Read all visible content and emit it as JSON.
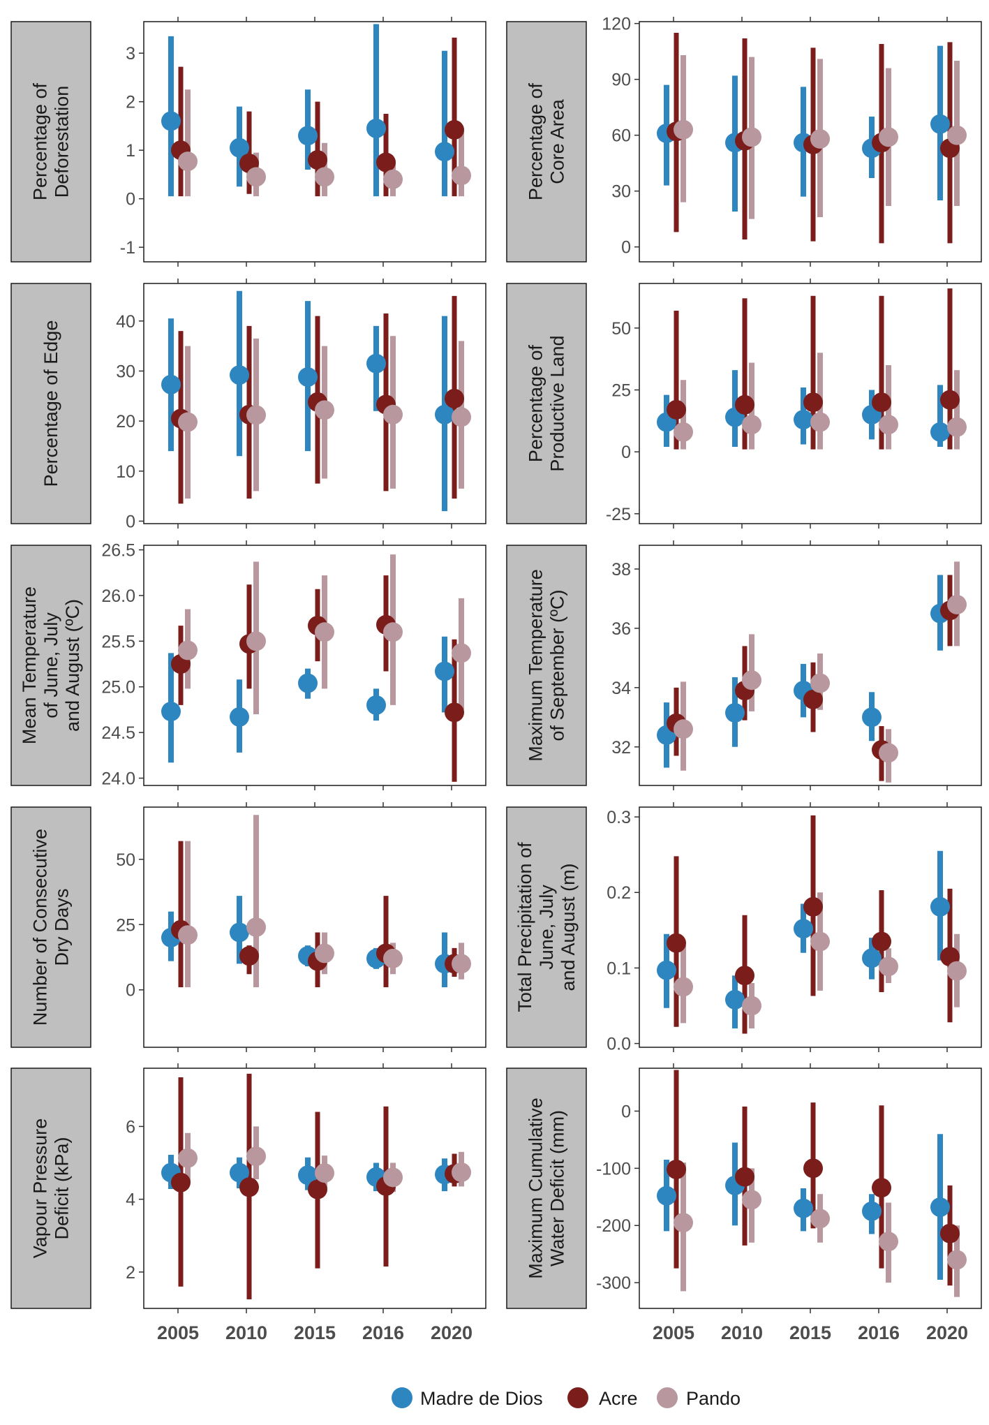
{
  "chart_data": {
    "type": "scatter",
    "subtype": "point-range",
    "categories": [
      "2005",
      "2010",
      "2015",
      "2016",
      "2020"
    ],
    "legend": {
      "position": "bottom",
      "entries": [
        {
          "name": "Madre de Dios",
          "color": "#2E86C1"
        },
        {
          "name": "Acre",
          "color": "#7B1E1B"
        },
        {
          "name": "Pando",
          "color": "#B9979E"
        }
      ]
    },
    "panels": [
      {
        "id": "deforestation",
        "strip_lines": [
          "Percentage of",
          "Deforestation"
        ],
        "ylim": [
          -1.3,
          3.65
        ],
        "yticks": [
          -1,
          0,
          1,
          2,
          3
        ],
        "series": [
          {
            "name": "Madre de Dios",
            "mean": [
              1.6,
              1.05,
              1.3,
              1.45,
              0.97
            ],
            "low": [
              0.05,
              0.25,
              0.6,
              0.05,
              0.05
            ],
            "high": [
              3.35,
              1.9,
              2.25,
              3.6,
              3.05
            ]
          },
          {
            "name": "Acre",
            "mean": [
              1.0,
              0.73,
              0.8,
              0.75,
              1.42
            ],
            "low": [
              0.05,
              0.1,
              0.05,
              0.05,
              0.05
            ],
            "high": [
              2.72,
              1.8,
              2.0,
              1.75,
              3.32
            ]
          },
          {
            "name": "Pando",
            "mean": [
              0.77,
              0.45,
              0.45,
              0.4,
              0.48
            ],
            "low": [
              0.05,
              0.05,
              0.05,
              0.05,
              0.05
            ],
            "high": [
              2.25,
              0.95,
              1.15,
              0.75,
              1.4
            ]
          }
        ]
      },
      {
        "id": "core-area",
        "strip_lines": [
          "Percentage of",
          "Core Area"
        ],
        "ylim": [
          -8,
          121
        ],
        "yticks": [
          0,
          30,
          60,
          90,
          120
        ],
        "series": [
          {
            "name": "Madre de Dios",
            "mean": [
              61,
              56,
              56,
              53,
              66
            ],
            "low": [
              33,
              19,
              27,
              37,
              25
            ],
            "high": [
              87,
              92,
              86,
              70,
              108
            ]
          },
          {
            "name": "Acre",
            "mean": [
              62,
              57,
              55,
              56,
              53
            ],
            "low": [
              8,
              4,
              3,
              2,
              2
            ],
            "high": [
              115,
              112,
              107,
              109,
              110
            ]
          },
          {
            "name": "Pando",
            "mean": [
              63,
              59,
              58,
              59,
              60
            ],
            "low": [
              24,
              15,
              16,
              22,
              22
            ],
            "high": [
              103,
              102,
              101,
              96,
              100
            ]
          }
        ]
      },
      {
        "id": "edge",
        "strip_lines": [
          "Percentage of Edge"
        ],
        "ylim": [
          -0.5,
          47.5
        ],
        "yticks": [
          0,
          10,
          20,
          30,
          40
        ],
        "series": [
          {
            "name": "Madre de Dios",
            "mean": [
              27.3,
              29.2,
              28.8,
              31.5,
              21.3
            ],
            "low": [
              14,
              13,
              14,
              22,
              2
            ],
            "high": [
              40.5,
              46,
              44,
              39,
              41
            ]
          },
          {
            "name": "Acre",
            "mean": [
              20.5,
              21.3,
              23.8,
              23.3,
              24.5
            ],
            "low": [
              3.5,
              4.5,
              7.5,
              6,
              4.5
            ],
            "high": [
              38,
              39,
              41,
              41.5,
              45
            ]
          },
          {
            "name": "Pando",
            "mean": [
              19.8,
              21.2,
              22.2,
              21.3,
              20.8
            ],
            "low": [
              4.5,
              6,
              8.5,
              6.5,
              6.5
            ],
            "high": [
              35,
              36.5,
              35,
              37,
              36
            ]
          }
        ]
      },
      {
        "id": "productive-land",
        "strip_lines": [
          "Percentage of",
          "Productive Land"
        ],
        "ylim": [
          -29,
          68
        ],
        "yticks": [
          -25,
          0,
          25,
          50
        ],
        "series": [
          {
            "name": "Madre de Dios",
            "mean": [
              12,
              14,
              13,
              15,
              8
            ],
            "low": [
              2,
              2,
              3,
              5,
              2
            ],
            "high": [
              23,
              33,
              26,
              25,
              27
            ]
          },
          {
            "name": "Acre",
            "mean": [
              17,
              19,
              20,
              20,
              21
            ],
            "low": [
              1,
              1,
              1,
              1,
              1
            ],
            "high": [
              57,
              62,
              63,
              63,
              66
            ]
          },
          {
            "name": "Pando",
            "mean": [
              8,
              11,
              12,
              11,
              10
            ],
            "low": [
              1,
              1,
              1,
              1,
              1
            ],
            "high": [
              29,
              36,
              40,
              35,
              33
            ]
          }
        ]
      },
      {
        "id": "mean-temperature",
        "strip_lines": [
          "Mean Temperature",
          "of June, July",
          "and August (ºC)"
        ],
        "ylim": [
          23.92,
          26.55
        ],
        "yticks": [
          24.0,
          24.5,
          25.0,
          25.5,
          26.0,
          26.5
        ],
        "tick_labels": [
          "24.0",
          "24.5",
          "25.0",
          "25.5",
          "26.0",
          "26.5"
        ],
        "series": [
          {
            "name": "Madre de Dios",
            "mean": [
              24.73,
              24.67,
              25.04,
              24.8,
              25.17
            ],
            "low": [
              24.17,
              24.28,
              24.87,
              24.63,
              24.72
            ],
            "high": [
              25.37,
              25.08,
              25.2,
              24.98,
              25.55
            ]
          },
          {
            "name": "Acre",
            "mean": [
              25.25,
              25.47,
              25.67,
              25.68,
              24.72
            ],
            "low": [
              24.8,
              24.98,
              25.28,
              25.17,
              23.96
            ],
            "high": [
              25.67,
              26.12,
              26.07,
              26.22,
              25.52
            ]
          },
          {
            "name": "Pando",
            "mean": [
              25.4,
              25.5,
              25.6,
              25.6,
              25.37
            ],
            "low": [
              24.98,
              24.7,
              24.98,
              24.8,
              24.75
            ],
            "high": [
              25.85,
              26.37,
              26.22,
              26.45,
              25.97
            ]
          }
        ]
      },
      {
        "id": "max-temperature",
        "strip_lines": [
          "Maximum Temperature",
          "of September (ºC)"
        ],
        "ylim": [
          30.7,
          38.8
        ],
        "yticks": [
          32,
          34,
          36,
          38
        ],
        "series": [
          {
            "name": "Madre de Dios",
            "mean": [
              32.4,
              33.15,
              33.9,
              33.0,
              36.5
            ],
            "low": [
              31.3,
              32.0,
              33.0,
              32.2,
              35.25
            ],
            "high": [
              33.5,
              34.35,
              34.8,
              33.85,
              37.8
            ]
          },
          {
            "name": "Acre",
            "mean": [
              32.8,
              33.9,
              33.6,
              31.9,
              36.6
            ],
            "low": [
              31.7,
              32.9,
              32.5,
              30.85,
              35.4
            ],
            "high": [
              34.0,
              35.4,
              34.85,
              32.7,
              37.8
            ]
          },
          {
            "name": "Pando",
            "mean": [
              32.6,
              34.25,
              34.15,
              31.8,
              36.8
            ],
            "low": [
              31.2,
              33.2,
              33.25,
              30.8,
              35.4
            ],
            "high": [
              34.2,
              35.8,
              35.15,
              32.6,
              38.25
            ]
          }
        ]
      },
      {
        "id": "dry-days",
        "strip_lines": [
          "Number of Consecutive",
          "Dry Days"
        ],
        "ylim": [
          -22,
          70
        ],
        "yticks": [
          0,
          25,
          50
        ],
        "series": [
          {
            "name": "Madre de Dios",
            "mean": [
              20,
              22,
              13,
              12,
              10
            ],
            "low": [
              11,
              10,
              9,
              8,
              1
            ],
            "high": [
              30,
              36,
              17,
              16,
              22
            ]
          },
          {
            "name": "Acre",
            "mean": [
              23,
              13,
              11,
              14,
              10
            ],
            "low": [
              1,
              6,
              1,
              1,
              5
            ],
            "high": [
              57,
              17,
              22,
              36,
              16
            ]
          },
          {
            "name": "Pando",
            "mean": [
              21,
              24,
              14,
              12,
              10
            ],
            "low": [
              1,
              1,
              6,
              6,
              4
            ],
            "high": [
              57,
              67,
              22,
              18,
              18
            ]
          }
        ]
      },
      {
        "id": "precipitation",
        "strip_lines": [
          "Total Precipitation of",
          "June, July",
          "and August (m)"
        ],
        "ylim": [
          -0.005,
          0.313
        ],
        "yticks": [
          0.0,
          0.1,
          0.2,
          0.3
        ],
        "tick_labels": [
          "0.0",
          "0.1",
          "0.2",
          "0.3"
        ],
        "series": [
          {
            "name": "Madre de Dios",
            "mean": [
              0.097,
              0.058,
              0.152,
              0.113,
              0.181
            ],
            "low": [
              0.047,
              0.02,
              0.12,
              0.085,
              0.11
            ],
            "high": [
              0.145,
              0.09,
              0.185,
              0.14,
              0.255
            ]
          },
          {
            "name": "Acre",
            "mean": [
              0.133,
              0.09,
              0.181,
              0.135,
              0.115
            ],
            "low": [
              0.022,
              0.013,
              0.063,
              0.068,
              0.028
            ],
            "high": [
              0.248,
              0.17,
              0.302,
              0.203,
              0.205
            ]
          },
          {
            "name": "Pando",
            "mean": [
              0.075,
              0.05,
              0.135,
              0.102,
              0.096
            ],
            "low": [
              0.027,
              0.02,
              0.07,
              0.08,
              0.048
            ],
            "high": [
              0.13,
              0.08,
              0.2,
              0.126,
              0.145
            ]
          }
        ]
      },
      {
        "id": "vpd",
        "strip_lines": [
          "Vapour Pressure",
          "Deficit (kPa)"
        ],
        "ylim": [
          1.0,
          7.6
        ],
        "yticks": [
          2,
          4,
          6
        ],
        "series": [
          {
            "name": "Madre de Dios",
            "mean": [
              4.73,
              4.73,
              4.66,
              4.61,
              4.68
            ],
            "low": [
              4.28,
              4.3,
              4.25,
              4.22,
              4.22
            ],
            "high": [
              5.22,
              5.15,
              5.15,
              5.0,
              5.12
            ]
          },
          {
            "name": "Acre",
            "mean": [
              4.46,
              4.33,
              4.27,
              4.36,
              4.7
            ],
            "low": [
              1.6,
              1.25,
              2.1,
              2.15,
              4.35
            ],
            "high": [
              7.35,
              7.45,
              6.4,
              6.55,
              5.25
            ]
          },
          {
            "name": "Pando",
            "mean": [
              5.13,
              5.18,
              4.72,
              4.6,
              4.74
            ],
            "low": [
              4.45,
              4.55,
              4.3,
              4.2,
              4.35
            ],
            "high": [
              5.82,
              6.0,
              5.2,
              5.0,
              5.3
            ]
          }
        ]
      },
      {
        "id": "water-deficit",
        "strip_lines": [
          "Maximum Cumulative",
          "Water Deficit (mm)"
        ],
        "ylim": [
          -345,
          75
        ],
        "yticks": [
          -300,
          -200,
          -100,
          0
        ],
        "series": [
          {
            "name": "Madre de Dios",
            "mean": [
              -148,
              -130,
              -170,
              -175,
              -168
            ],
            "low": [
              -210,
              -200,
              -210,
              -215,
              -295
            ],
            "high": [
              -85,
              -55,
              -135,
              -145,
              -40
            ]
          },
          {
            "name": "Acre",
            "mean": [
              -102,
              -115,
              -100,
              -134,
              -214
            ],
            "low": [
              -275,
              -235,
              -205,
              -275,
              -305
            ],
            "high": [
              72,
              8,
              15,
              10,
              -130
            ]
          },
          {
            "name": "Pando",
            "mean": [
              -195,
              -155,
              -188,
              -228,
              -260
            ],
            "low": [
              -315,
              -230,
              -230,
              -300,
              -325
            ],
            "high": [
              -90,
              -100,
              -145,
              -160,
              -200
            ]
          }
        ]
      }
    ]
  }
}
